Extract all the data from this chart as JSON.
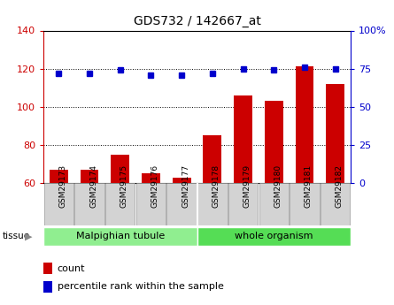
{
  "title": "GDS732 / 142667_at",
  "samples": [
    "GSM29173",
    "GSM29174",
    "GSM29175",
    "GSM29176",
    "GSM29177",
    "GSM29178",
    "GSM29179",
    "GSM29180",
    "GSM29181",
    "GSM29182"
  ],
  "counts": [
    67,
    67,
    75,
    65,
    63,
    85,
    106,
    103,
    121,
    112
  ],
  "percentiles": [
    72,
    72,
    74,
    71,
    71,
    72,
    75,
    74,
    76,
    75
  ],
  "tissue_groups": [
    {
      "label": "Malpighian tubule",
      "start": 0,
      "end": 5
    },
    {
      "label": "whole organism",
      "start": 5,
      "end": 10
    }
  ],
  "tissue_colors": [
    "#90ee90",
    "#55dd55"
  ],
  "left_ylim": [
    60,
    140
  ],
  "left_yticks": [
    60,
    80,
    100,
    120,
    140
  ],
  "right_ylim": [
    0,
    100
  ],
  "right_yticks": [
    0,
    25,
    50,
    75,
    100
  ],
  "right_yticklabels": [
    "0",
    "25",
    "50",
    "75",
    "100%"
  ],
  "bar_color": "#cc0000",
  "dot_color": "#0000cc",
  "bar_width": 0.6,
  "left_tick_color": "#cc0000",
  "right_tick_color": "#0000cc",
  "legend_count_label": "count",
  "legend_pct_label": "percentile rank within the sample",
  "fig_width": 4.45,
  "fig_height": 3.45
}
